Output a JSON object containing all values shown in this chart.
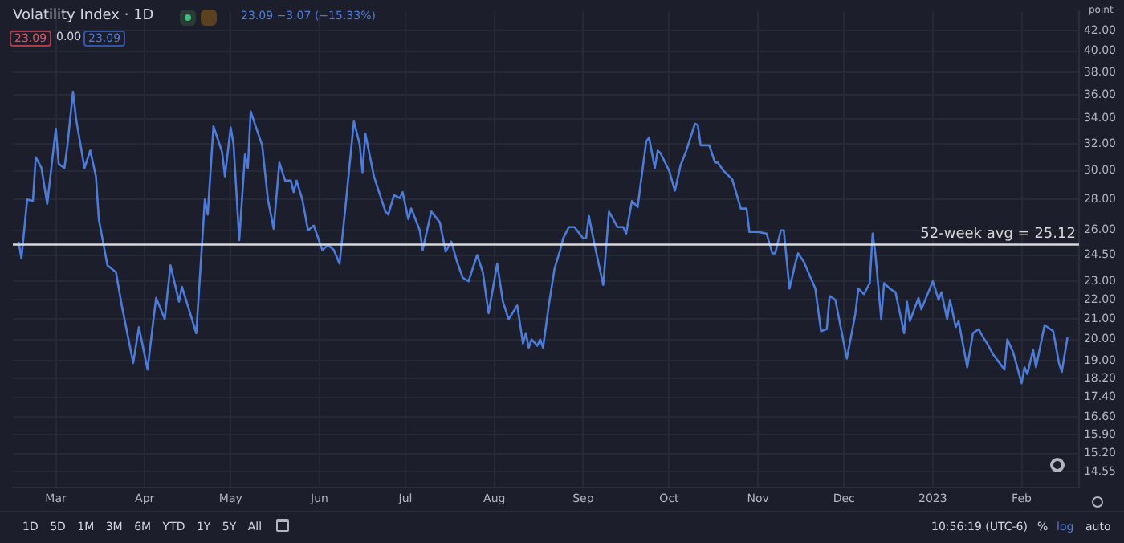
{
  "chart_data": {
    "type": "line",
    "title": "Volatility Index · 1D",
    "ylabel": "point",
    "annotations": [
      "23.09 −3.07 (−15.33%)",
      "23.09",
      "0.00",
      "23.09",
      "1D 5D 1M 3M 6M YTD 1Y 5Y All",
      "10:56:19 (UTC-6)",
      "%",
      "log",
      "auto"
    ],
    "x": [
      "2022-02-16",
      "2022-02-17",
      "2022-02-19",
      "2022-02-21",
      "2022-02-22",
      "2022-02-24",
      "2022-02-26",
      "2022-03-01",
      "2022-03-02",
      "2022-03-04",
      "2022-03-05",
      "2022-03-07",
      "2022-03-08",
      "2022-03-11",
      "2022-03-13",
      "2022-03-15",
      "2022-03-16",
      "2022-03-19",
      "2022-03-22",
      "2022-03-24",
      "2022-03-28",
      "2022-03-30",
      "2022-04-02",
      "2022-04-04",
      "2022-04-05",
      "2022-04-08",
      "2022-04-10",
      "2022-04-13",
      "2022-04-14",
      "2022-04-19",
      "2022-04-22",
      "2022-04-23",
      "2022-04-25",
      "2022-04-28",
      "2022-04-29",
      "2022-05-01",
      "2022-05-02",
      "2022-05-04",
      "2022-05-06",
      "2022-05-07",
      "2022-05-08",
      "2022-05-10",
      "2022-05-12",
      "2022-05-14",
      "2022-05-16",
      "2022-05-18",
      "2022-05-20",
      "2022-05-22",
      "2022-05-23",
      "2022-05-24",
      "2022-05-26",
      "2022-05-28",
      "2022-05-30",
      "2022-06-02",
      "2022-06-04",
      "2022-06-06",
      "2022-06-08",
      "2022-06-10",
      "2022-06-13",
      "2022-06-15",
      "2022-06-16",
      "2022-06-17",
      "2022-06-20",
      "2022-06-24",
      "2022-06-25",
      "2022-06-27",
      "2022-06-29",
      "2022-06-30",
      "2022-07-02",
      "2022-07-03",
      "2022-07-06",
      "2022-07-07",
      "2022-07-10",
      "2022-07-13",
      "2022-07-15",
      "2022-07-17",
      "2022-07-19",
      "2022-07-21",
      "2022-07-23",
      "2022-07-26",
      "2022-07-28",
      "2022-07-30",
      "2022-08-02",
      "2022-08-04",
      "2022-08-06",
      "2022-08-09",
      "2022-08-11",
      "2022-08-12",
      "2022-08-13",
      "2022-08-14",
      "2022-08-16",
      "2022-08-17",
      "2022-08-18",
      "2022-08-20",
      "2022-08-22",
      "2022-08-24",
      "2022-08-25",
      "2022-08-27",
      "2022-08-29",
      "2022-09-01",
      "2022-09-02",
      "2022-09-03",
      "2022-09-05",
      "2022-09-08",
      "2022-09-10",
      "2022-09-13",
      "2022-09-15",
      "2022-09-16",
      "2022-09-18",
      "2022-09-20",
      "2022-09-23",
      "2022-09-24",
      "2022-09-26",
      "2022-09-27",
      "2022-09-28",
      "2022-10-01",
      "2022-10-03",
      "2022-10-05",
      "2022-10-07",
      "2022-10-10",
      "2022-10-11",
      "2022-10-12",
      "2022-10-15",
      "2022-10-17",
      "2022-10-18",
      "2022-10-20",
      "2022-10-22",
      "2022-10-23",
      "2022-10-26",
      "2022-10-28",
      "2022-10-29",
      "2022-11-01",
      "2022-11-04",
      "2022-11-06",
      "2022-11-07",
      "2022-11-09",
      "2022-11-10",
      "2022-11-12",
      "2022-11-14",
      "2022-11-15",
      "2022-11-17",
      "2022-11-21",
      "2022-11-23",
      "2022-11-25",
      "2022-11-26",
      "2022-11-28",
      "2022-12-02",
      "2022-12-05",
      "2022-12-06",
      "2022-12-08",
      "2022-12-10",
      "2022-12-11",
      "2022-12-12",
      "2022-12-14",
      "2022-12-15",
      "2022-12-17",
      "2022-12-19",
      "2022-12-22",
      "2022-12-23",
      "2022-12-24",
      "2022-12-27",
      "2022-12-28",
      "2023-01-01",
      "2023-01-03",
      "2023-01-04",
      "2023-01-06",
      "2023-01-07",
      "2023-01-09",
      "2023-01-10",
      "2023-01-13",
      "2023-01-15",
      "2023-01-17",
      "2023-01-19",
      "2023-01-20",
      "2023-01-22",
      "2023-01-26",
      "2023-01-27",
      "2023-01-29",
      "2023-02-01",
      "2023-02-02",
      "2023-02-03",
      "2023-02-05",
      "2023-02-06",
      "2023-02-09",
      "2023-02-12",
      "2023-02-14",
      "2023-02-15",
      "2023-02-17"
    ],
    "series": [
      {
        "color": "#4c7bd9",
        "values": [
          25.3,
          24.3,
          28.0,
          27.9,
          31.0,
          30.2,
          27.7,
          33.2,
          30.5,
          30.2,
          31.8,
          36.3,
          34.1,
          30.2,
          31.5,
          29.6,
          26.7,
          23.9,
          23.5,
          21.7,
          18.9,
          20.6,
          18.6,
          20.9,
          22.1,
          21.0,
          23.9,
          21.9,
          22.7,
          20.3,
          28.0,
          27.0,
          33.4,
          31.4,
          29.6,
          33.3,
          32.0,
          25.4,
          31.2,
          30.2,
          34.6,
          33.2,
          31.9,
          28.0,
          26.1,
          30.6,
          29.3,
          29.3,
          28.5,
          29.3,
          28.0,
          26.0,
          26.3,
          24.8,
          25.1,
          24.8,
          24.0,
          27.4,
          33.8,
          32.0,
          29.9,
          32.8,
          29.6,
          27.2,
          27.0,
          28.3,
          28.1,
          28.5,
          26.7,
          27.4,
          26.0,
          24.8,
          27.2,
          26.5,
          24.7,
          25.3,
          24.1,
          23.2,
          23.0,
          24.5,
          23.5,
          21.3,
          24.0,
          21.9,
          21.0,
          21.7,
          19.8,
          20.3,
          19.6,
          20.0,
          19.7,
          20.0,
          19.6,
          21.7,
          23.7,
          24.8,
          25.5,
          26.2,
          26.2,
          25.5,
          25.5,
          26.9,
          25.1,
          22.8,
          27.2,
          26.2,
          26.2,
          25.8,
          27.9,
          27.5,
          32.2,
          32.5,
          30.2,
          31.5,
          31.3,
          30.0,
          28.6,
          30.4,
          31.5,
          33.6,
          33.5,
          31.9,
          31.9,
          30.6,
          30.6,
          30.0,
          29.6,
          29.4,
          27.4,
          27.4,
          25.9,
          25.9,
          25.8,
          24.6,
          24.6,
          26.0,
          26.0,
          22.6,
          24.0,
          24.6,
          24.1,
          22.6,
          20.4,
          20.5,
          22.2,
          22.0,
          19.1,
          21.3,
          22.6,
          22.3,
          22.9,
          25.8,
          24.5,
          21.0,
          22.9,
          22.6,
          22.4,
          20.3,
          21.9,
          20.9,
          22.1,
          21.5,
          23.0,
          22.0,
          22.4,
          21.0,
          22.0,
          20.6,
          20.9,
          18.7,
          20.3,
          20.5,
          20.0,
          19.8,
          19.3,
          18.6,
          20.0,
          19.4,
          18.0,
          18.7,
          18.4,
          19.5,
          18.7,
          20.7,
          20.4,
          18.9,
          18.5,
          20.1
        ]
      }
    ],
    "xlim": [
      "2022-02-14",
      "2023-02-21"
    ],
    "xticks": [
      {
        "value": "2022-03-01",
        "label": "Mar"
      },
      {
        "value": "2022-04-01",
        "label": "Apr"
      },
      {
        "value": "2022-05-01",
        "label": "May"
      },
      {
        "value": "2022-06-01",
        "label": "Jun"
      },
      {
        "value": "2022-07-01",
        "label": "Jul"
      },
      {
        "value": "2022-08-01",
        "label": "Aug"
      },
      {
        "value": "2022-09-01",
        "label": "Sep"
      },
      {
        "value": "2022-10-01",
        "label": "Oct"
      },
      {
        "value": "2022-11-01",
        "label": "Nov"
      },
      {
        "value": "2022-12-01",
        "label": "Dec"
      },
      {
        "value": "2023-01-01",
        "label": "2023"
      },
      {
        "value": "2023-02-01",
        "label": "Feb"
      }
    ],
    "ylim": [
      14,
      44
    ],
    "yticks": [
      {
        "value": 14.55,
        "label": "14.55"
      },
      {
        "value": 15.2,
        "label": "15.20"
      },
      {
        "value": 15.9,
        "label": "15.90"
      },
      {
        "value": 16.6,
        "label": "16.60"
      },
      {
        "value": 17.4,
        "label": "17.40"
      },
      {
        "value": 18.2,
        "label": "18.20"
      },
      {
        "value": 19,
        "label": "19.00"
      },
      {
        "value": 20,
        "label": "20.00"
      },
      {
        "value": 21,
        "label": "21.00"
      },
      {
        "value": 22,
        "label": "22.00"
      },
      {
        "value": 23,
        "label": "23.00"
      },
      {
        "value": 24.5,
        "label": "24.50"
      },
      {
        "value": 26,
        "label": "26.00"
      },
      {
        "value": 28,
        "label": "28.00"
      },
      {
        "value": 30,
        "label": "30.00"
      },
      {
        "value": 32,
        "label": "32.00"
      },
      {
        "value": 34,
        "label": "34.00"
      },
      {
        "value": 36,
        "label": "36.00"
      },
      {
        "value": 38,
        "label": "38.00"
      },
      {
        "value": 40,
        "label": "40.00"
      },
      {
        "value": 42,
        "label": "42.00"
      }
    ],
    "log": "y",
    "grid": true,
    "marker": "none",
    "line_style": "solid",
    "ref_lines": [
      {
        "axis": "y",
        "value": 25.12,
        "label": "52-week avg = 25.12",
        "color": "#d8d8d8"
      }
    ]
  }
}
